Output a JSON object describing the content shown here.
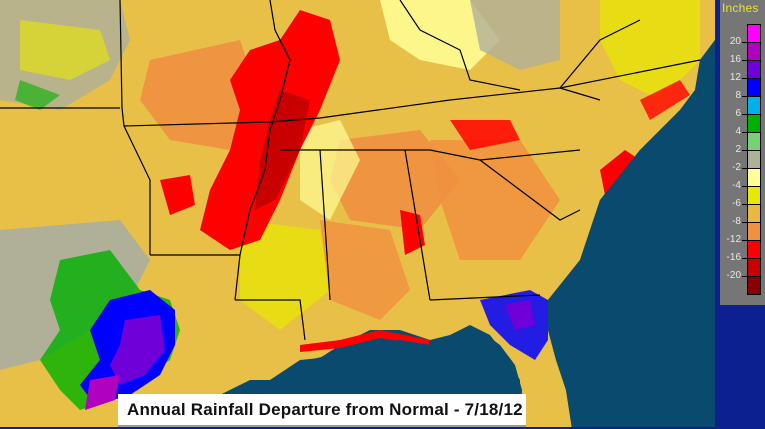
{
  "title": "Annual Rainfall Departure from Normal - 7/18/12",
  "legend": {
    "title": "Inches",
    "bins": [
      {
        "label": "",
        "color": "#ff00ff"
      },
      {
        "label": "20",
        "color": "#b000c0"
      },
      {
        "label": "16",
        "color": "#7000d8"
      },
      {
        "label": "12",
        "color": "#0000ff"
      },
      {
        "label": "8",
        "color": "#00b0e8"
      },
      {
        "label": "6",
        "color": "#00b000"
      },
      {
        "label": "4",
        "color": "#78d078"
      },
      {
        "label": "2",
        "color": "#b0b098"
      },
      {
        "label": "-2",
        "color": "#ffff98"
      },
      {
        "label": "-4",
        "color": "#e8e800"
      },
      {
        "label": "-6",
        "color": "#e8b840"
      },
      {
        "label": "-8",
        "color": "#f09040"
      },
      {
        "label": "-12",
        "color": "#ff0000"
      },
      {
        "label": "-16",
        "color": "#c80000"
      },
      {
        "label": "-20",
        "color": "#880000"
      }
    ]
  },
  "colors": {
    "ocean": "#0a4a6e",
    "frame": "#0c2090",
    "legend_bg": "#767676",
    "legend_title": "#e6e62e"
  },
  "chart_data": {
    "type": "heatmap",
    "title": "Annual Rainfall Departure from Normal - 7/18/12",
    "units": "Inches",
    "legend_breaks": [
      20,
      16,
      12,
      8,
      6,
      4,
      2,
      -2,
      -4,
      -6,
      -8,
      -12,
      -16,
      -20
    ],
    "legend_colors": [
      "#ff00ff",
      "#b000c0",
      "#7000d8",
      "#0000ff",
      "#00b0e8",
      "#00b000",
      "#78d078",
      "#b0b098",
      "#ffff98",
      "#e8e800",
      "#e8b840",
      "#f09040",
      "#ff0000",
      "#c80000",
      "#880000"
    ],
    "region": "Southeastern United States",
    "legend_position": "right"
  }
}
